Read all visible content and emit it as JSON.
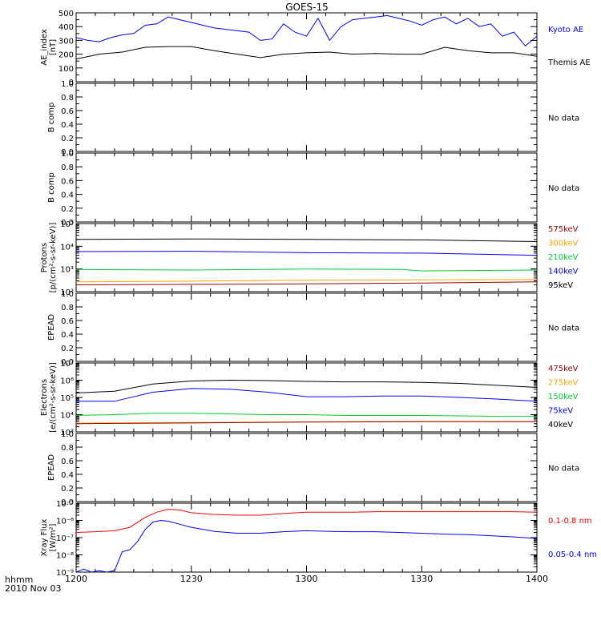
{
  "title": "GOES-15",
  "time_axis": {
    "label": "hhmm",
    "date": "2010 Nov 03",
    "ticks": [
      "1200",
      "1230",
      "1300",
      "1330",
      "1400"
    ]
  },
  "panels": [
    {
      "name": "ae-index",
      "type": "line",
      "ylabel": [
        "AE_index",
        "[nT]"
      ],
      "yscale": "linear",
      "ylim": [
        0,
        500
      ],
      "ytick_labels": [
        "0",
        "100",
        "200",
        "300",
        "400",
        "500"
      ],
      "legend": [
        {
          "text": "Kyoto AE",
          "color": "#0000ff"
        },
        {
          "text": "Themis AE",
          "color": "#000000"
        }
      ],
      "series": [
        {
          "name": "Kyoto AE",
          "color": "#0000ff",
          "x": [
            0,
            3,
            6,
            9,
            12,
            15,
            18,
            21,
            24,
            27,
            30,
            33,
            36,
            39,
            42,
            45,
            48,
            51,
            54,
            57,
            60,
            63,
            66,
            69,
            72,
            75,
            78,
            81,
            84,
            87,
            90,
            93,
            96,
            99,
            102,
            105,
            108,
            111,
            114,
            117,
            120
          ],
          "y": [
            320,
            300,
            290,
            320,
            340,
            350,
            410,
            420,
            470,
            450,
            430,
            410,
            390,
            380,
            370,
            360,
            300,
            310,
            420,
            360,
            330,
            460,
            300,
            400,
            450,
            460,
            470,
            480,
            460,
            440,
            410,
            450,
            470,
            420,
            460,
            400,
            420,
            330,
            360,
            260,
            330
          ]
        },
        {
          "name": "Themis AE",
          "color": "#000000",
          "x": [
            0,
            6,
            12,
            18,
            24,
            30,
            36,
            42,
            48,
            54,
            60,
            66,
            72,
            78,
            84,
            90,
            96,
            102,
            108,
            114,
            120
          ],
          "y": [
            165,
            200,
            215,
            250,
            255,
            255,
            225,
            200,
            175,
            200,
            210,
            215,
            200,
            205,
            200,
            200,
            250,
            225,
            210,
            210,
            185
          ]
        }
      ]
    },
    {
      "name": "b-comp-1",
      "ylabel": [
        "B comp"
      ],
      "yscale": "linear",
      "ylim": [
        0,
        1
      ],
      "ytick_labels": [
        "0.0",
        "0.2",
        "0.4",
        "0.6",
        "0.8",
        "1.0"
      ],
      "note": "No data",
      "series": []
    },
    {
      "name": "b-comp-2",
      "ylabel": [
        "B comp"
      ],
      "yscale": "linear",
      "ylim": [
        0,
        1
      ],
      "ytick_labels": [
        "0.0",
        "0.2",
        "0.4",
        "0.6",
        "0.8",
        "1.0"
      ],
      "note": "No data",
      "series": []
    },
    {
      "name": "protons",
      "type": "line",
      "ylabel": [
        "Protons",
        "[p/(cm²-s-sr-keV)]"
      ],
      "yscale": "log",
      "ylim": [
        100,
        100000
      ],
      "ytick_labels": [
        "10²",
        "10³",
        "10⁴",
        "10⁵"
      ],
      "legend": [
        {
          "text": "575keV",
          "color": "#990000"
        },
        {
          "text": "300keV",
          "color": "#ffa500"
        },
        {
          "text": "210keV",
          "color": "#00cc33"
        },
        {
          "text": "140keV",
          "color": "#0000ff"
        },
        {
          "text": "95keV",
          "color": "#000000"
        }
      ],
      "series": [
        {
          "name": "95keV",
          "color": "#000000",
          "x": [
            0,
            30,
            60,
            90,
            120
          ],
          "y": [
            20000,
            21000,
            20000,
            19000,
            16000
          ]
        },
        {
          "name": "140keV",
          "color": "#0000ff",
          "x": [
            0,
            30,
            60,
            90,
            120
          ],
          "y": [
            5800,
            6000,
            5200,
            5000,
            4000
          ]
        },
        {
          "name": "210keV",
          "color": "#00cc33",
          "x": [
            0,
            30,
            60,
            85,
            90,
            120
          ],
          "y": [
            950,
            900,
            1000,
            950,
            820,
            900
          ]
        },
        {
          "name": "300keV",
          "color": "#ffa500",
          "x": [
            0,
            30,
            60,
            90,
            120
          ],
          "y": [
            270,
            290,
            320,
            330,
            340
          ]
        },
        {
          "name": "575keV",
          "color": "#990000",
          "x": [
            0,
            30,
            60,
            90,
            120
          ],
          "y": [
            200,
            210,
            220,
            240,
            270
          ]
        }
      ]
    },
    {
      "name": "epead-1",
      "ylabel": [
        "EPEAD"
      ],
      "yscale": "linear",
      "ylim": [
        0,
        1
      ],
      "ytick_labels": [
        "0.0",
        "0.2",
        "0.4",
        "0.6",
        "0.8",
        "1.0"
      ],
      "note": "No data",
      "series": []
    },
    {
      "name": "electrons",
      "type": "line",
      "ylabel": [
        "Electrons",
        "[e/(cm²-s-sr-keV)]"
      ],
      "yscale": "log",
      "ylim": [
        1000,
        10000000
      ],
      "ytick_labels": [
        "10³",
        "10⁴",
        "10⁵",
        "10⁶",
        "10⁷"
      ],
      "legend": [
        {
          "text": "475keV",
          "color": "#990000"
        },
        {
          "text": "275keV",
          "color": "#ffa500"
        },
        {
          "text": "150keV",
          "color": "#00cc33"
        },
        {
          "text": "75keV",
          "color": "#0000ff"
        },
        {
          "text": "40keV",
          "color": "#000000"
        }
      ],
      "series": [
        {
          "name": "40keV",
          "color": "#000000",
          "x": [
            0,
            10,
            20,
            30,
            40,
            50,
            60,
            70,
            80,
            90,
            100,
            110,
            120
          ],
          "y": [
            180000,
            230000,
            600000,
            900000,
            1000000,
            950000,
            850000,
            800000,
            800000,
            750000,
            650000,
            500000,
            380000
          ]
        },
        {
          "name": "75keV",
          "color": "#0000ff",
          "x": [
            0,
            10,
            20,
            30,
            40,
            50,
            60,
            70,
            80,
            90,
            100,
            110,
            120
          ],
          "y": [
            60000,
            60000,
            200000,
            330000,
            300000,
            200000,
            110000,
            110000,
            120000,
            120000,
            100000,
            80000,
            60000
          ]
        },
        {
          "name": "150keV",
          "color": "#00cc33",
          "x": [
            0,
            10,
            20,
            30,
            40,
            50,
            60,
            70,
            80,
            90,
            100,
            110,
            120
          ],
          "y": [
            9000,
            10000,
            12000,
            12000,
            11000,
            10000,
            10000,
            9000,
            9000,
            9000,
            8500,
            8000,
            8000
          ]
        },
        {
          "name": "275keV",
          "color": "#ffa500",
          "x": [
            0,
            30,
            60,
            90,
            120
          ],
          "y": [
            3200,
            3500,
            3800,
            4000,
            4000
          ]
        },
        {
          "name": "475keV",
          "color": "#990000",
          "x": [
            0,
            30,
            60,
            90,
            120
          ],
          "y": [
            3000,
            3300,
            3700,
            3900,
            3900
          ]
        }
      ]
    },
    {
      "name": "epead-2",
      "ylabel": [
        "EPEAD"
      ],
      "yscale": "linear",
      "ylim": [
        0,
        1
      ],
      "ytick_labels": [
        "0.0",
        "0.2",
        "0.4",
        "0.6",
        "0.8",
        "1.0"
      ],
      "note": "No data",
      "series": []
    },
    {
      "name": "xray",
      "type": "line",
      "ylabel": [
        "Xray Flux",
        "[W/m²]"
      ],
      "yscale": "log",
      "ylim": [
        1e-09,
        1e-05
      ],
      "ytick_labels": [
        "10⁻⁹",
        "10⁻⁸",
        "10⁻⁷",
        "10⁻⁶",
        "10⁻⁵"
      ],
      "legend": [
        {
          "text": "0.1-0.8 nm",
          "color": "#ff0000"
        },
        {
          "text": "0.05-0.4 nm",
          "color": "#0000ff"
        }
      ],
      "series": [
        {
          "name": "0.1-0.8 nm",
          "color": "#ff0000",
          "x": [
            0,
            5,
            10,
            14,
            18,
            21,
            24,
            27,
            30,
            36,
            42,
            48,
            54,
            60,
            66,
            72,
            78,
            84,
            90,
            96,
            102,
            108,
            114,
            120
          ],
          "y": [
            2e-07,
            2.2e-07,
            2.5e-07,
            4e-07,
            1.5e-06,
            3e-06,
            4.5e-06,
            4e-06,
            2.8e-06,
            2.2e-06,
            2e-06,
            2e-06,
            2.5e-06,
            3e-06,
            3e-06,
            3e-06,
            3.2e-06,
            3.2e-06,
            3.2e-06,
            3.2e-06,
            3.2e-06,
            3.2e-06,
            3.2e-06,
            3e-06
          ]
        },
        {
          "name": "0.05-0.4 nm",
          "color": "#0000ff",
          "x": [
            0,
            2,
            4,
            6,
            8,
            10,
            12,
            14,
            16,
            18,
            20,
            22,
            24,
            27,
            30,
            36,
            42,
            48,
            54,
            60,
            66,
            72,
            78,
            84,
            90,
            96,
            102,
            108,
            114,
            120
          ],
          "y": [
            1e-09,
            1.5e-09,
            1e-09,
            1.2e-09,
            1e-09,
            1.2e-09,
            1.5e-08,
            2e-08,
            6e-08,
            3e-07,
            8e-07,
            1e-06,
            9e-07,
            6e-07,
            4e-07,
            2.3e-07,
            1.8e-07,
            1.8e-07,
            2.2e-07,
            2.5e-07,
            2.3e-07,
            2.2e-07,
            2.2e-07,
            2e-07,
            1.8e-07,
            1.6e-07,
            1.5e-07,
            1.3e-07,
            1.1e-07,
            9e-08
          ]
        }
      ]
    }
  ]
}
